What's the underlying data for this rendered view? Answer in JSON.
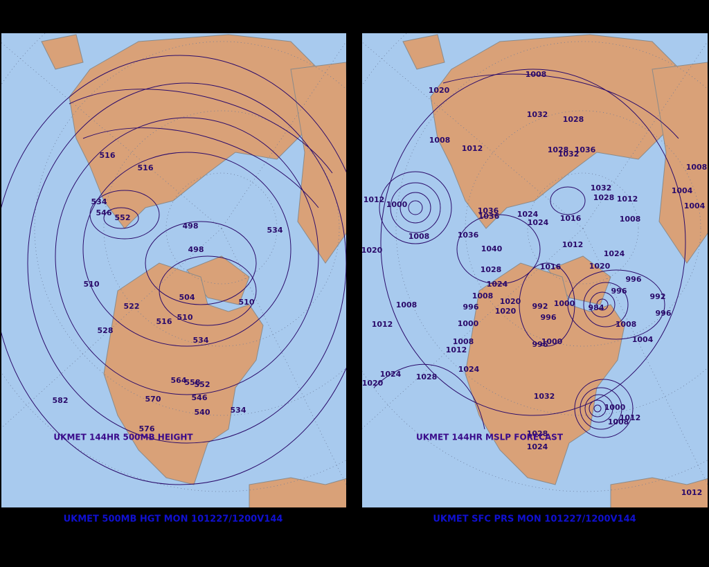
{
  "panels": [
    {
      "title": "UKMET 144HR 500MB HEIGHT",
      "caption": "UKMET 500MB HGT MON 101227/1200V144",
      "labels": [
        516,
        516,
        534,
        546,
        552,
        498,
        498,
        534,
        510,
        522,
        504,
        516,
        510,
        510,
        528,
        534,
        564,
        558,
        552,
        546,
        570,
        582,
        540,
        534,
        576
      ]
    },
    {
      "title": "UKMET 144HR MSLP FORECAST",
      "caption": "UKMET SFC PRS MON 101227/1200V144",
      "labels": [
        1008,
        1020,
        1032,
        1028,
        1008,
        1012,
        1028,
        1036,
        1032,
        1008,
        1032,
        1004,
        1028,
        1012,
        1012,
        1000,
        1004,
        1036,
        1036,
        1024,
        1024,
        1016,
        1008,
        1008,
        1036,
        1012,
        1024,
        1020,
        1040,
        1028,
        1016,
        1020,
        1024,
        996,
        996,
        992,
        1008,
        1020,
        1008,
        996,
        992,
        1000,
        984,
        1020,
        996,
        996,
        1000,
        1012,
        1008,
        1004,
        1008,
        1000,
        996,
        1012,
        1024,
        1024,
        1028,
        1020,
        1032,
        1000,
        1012,
        1008,
        1028,
        1024,
        1012
      ]
    }
  ]
}
